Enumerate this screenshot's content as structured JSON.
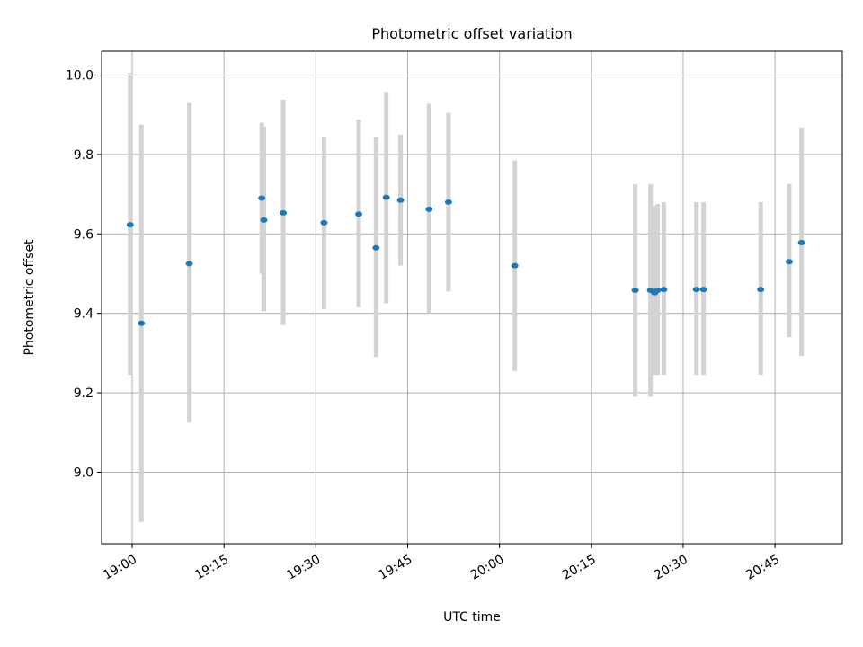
{
  "chart_data": {
    "type": "scatter",
    "title": "Photometric offset variation",
    "xlabel": "UTC time",
    "ylabel": "Photometric offset",
    "ylim": [
      8.82,
      10.06
    ],
    "xlim": [
      "18:55",
      "20:56"
    ],
    "grid": true,
    "x_ticks": [
      "19:00",
      "19:15",
      "19:30",
      "19:45",
      "20:00",
      "20:15",
      "20:30",
      "20:45"
    ],
    "y_ticks": [
      9.0,
      9.2,
      9.4,
      9.6,
      9.8,
      10.0
    ],
    "y_tick_labels": [
      "9.0",
      "9.2",
      "9.4",
      "9.6",
      "9.8",
      "10.0"
    ],
    "colors": {
      "point": "#1f77b4",
      "error_bar": "#d3d3d3",
      "grid": "#b0b0b0"
    },
    "series": [
      {
        "points": [
          {
            "x": "18:59:40",
            "y": 9.623,
            "ylow": 9.245,
            "yhigh": 10.005
          },
          {
            "x": "19:01:30",
            "y": 9.375,
            "ylow": 8.875,
            "yhigh": 9.875
          },
          {
            "x": "19:09:20",
            "y": 9.525,
            "ylow": 9.125,
            "yhigh": 9.93
          },
          {
            "x": "19:21:10",
            "y": 9.69,
            "ylow": 9.5,
            "yhigh": 9.88
          },
          {
            "x": "19:21:30",
            "y": 9.635,
            "ylow": 9.405,
            "yhigh": 9.87
          },
          {
            "x": "19:24:40",
            "y": 9.653,
            "ylow": 9.37,
            "yhigh": 9.938
          },
          {
            "x": "19:31:20",
            "y": 9.628,
            "ylow": 9.41,
            "yhigh": 9.845
          },
          {
            "x": "19:37:00",
            "y": 9.65,
            "ylow": 9.415,
            "yhigh": 9.888
          },
          {
            "x": "19:39:50",
            "y": 9.565,
            "ylow": 9.29,
            "yhigh": 9.843
          },
          {
            "x": "19:41:30",
            "y": 9.692,
            "ylow": 9.425,
            "yhigh": 9.958
          },
          {
            "x": "19:43:50",
            "y": 9.685,
            "ylow": 9.52,
            "yhigh": 9.85
          },
          {
            "x": "19:48:30",
            "y": 9.662,
            "ylow": 9.4,
            "yhigh": 9.928
          },
          {
            "x": "19:51:40",
            "y": 9.68,
            "ylow": 9.455,
            "yhigh": 9.905
          },
          {
            "x": "20:02:30",
            "y": 9.52,
            "ylow": 9.255,
            "yhigh": 9.785
          },
          {
            "x": "20:22:10",
            "y": 9.458,
            "ylow": 9.19,
            "yhigh": 9.725
          },
          {
            "x": "20:24:40",
            "y": 9.458,
            "ylow": 9.19,
            "yhigh": 9.725
          },
          {
            "x": "20:25:20",
            "y": 9.452,
            "ylow": 9.245,
            "yhigh": 9.67
          },
          {
            "x": "20:25:50",
            "y": 9.458,
            "ylow": 9.245,
            "yhigh": 9.675
          },
          {
            "x": "20:26:50",
            "y": 9.46,
            "ylow": 9.245,
            "yhigh": 9.68
          },
          {
            "x": "20:32:10",
            "y": 9.46,
            "ylow": 9.245,
            "yhigh": 9.68
          },
          {
            "x": "20:33:20",
            "y": 9.46,
            "ylow": 9.245,
            "yhigh": 9.68
          },
          {
            "x": "20:42:40",
            "y": 9.46,
            "ylow": 9.245,
            "yhigh": 9.68
          },
          {
            "x": "20:47:20",
            "y": 9.53,
            "ylow": 9.34,
            "yhigh": 9.725
          },
          {
            "x": "20:49:20",
            "y": 9.578,
            "ylow": 9.293,
            "yhigh": 9.868
          }
        ]
      }
    ]
  }
}
